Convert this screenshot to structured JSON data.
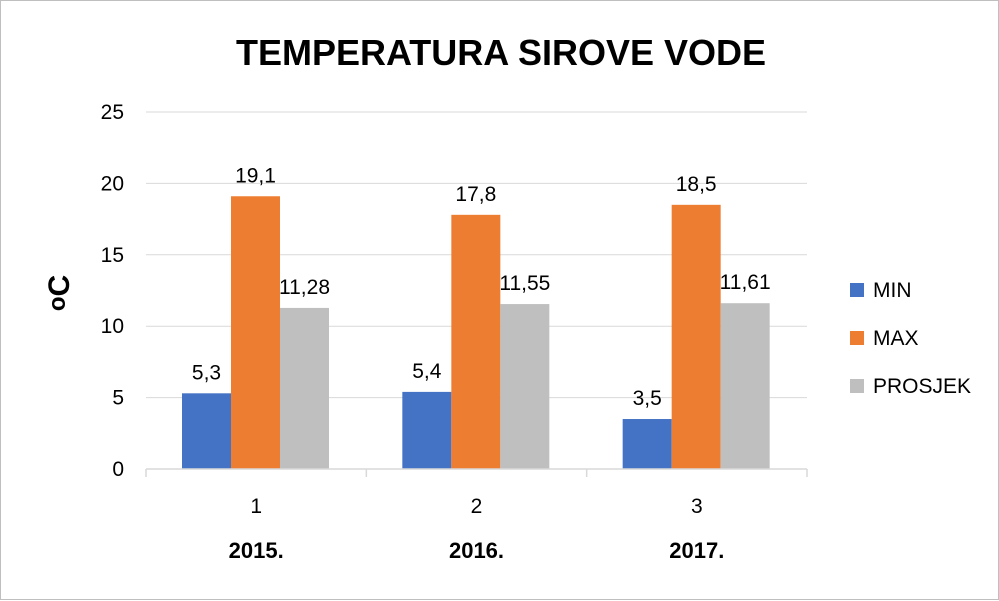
{
  "chart_data": {
    "type": "bar",
    "title": "TEMPERATURA SIROVE VODE",
    "ylabel": "oC",
    "ylim": [
      0,
      25
    ],
    "yticks": [
      "0",
      "5",
      "10",
      "15",
      "20",
      "25"
    ],
    "xtick_labels": [
      "1",
      "2",
      "3"
    ],
    "categories": [
      "2015.",
      "2016.",
      "2017."
    ],
    "grid": true,
    "legend_position": "right",
    "series": [
      {
        "name": "MIN",
        "color": "#4472C4",
        "values": [
          5.3,
          5.4,
          3.5
        ],
        "labels": [
          "5,3",
          "5,4",
          "3,5"
        ]
      },
      {
        "name": "MAX",
        "color": "#ED7D31",
        "values": [
          19.1,
          17.8,
          18.5
        ],
        "labels": [
          "19,1",
          "17,8",
          "18,5"
        ]
      },
      {
        "name": "PROSJEK",
        "color": "#BFBFBF",
        "values": [
          11.28,
          11.55,
          11.61
        ],
        "labels": [
          "11,28",
          "11,55",
          "11,61"
        ]
      }
    ]
  }
}
